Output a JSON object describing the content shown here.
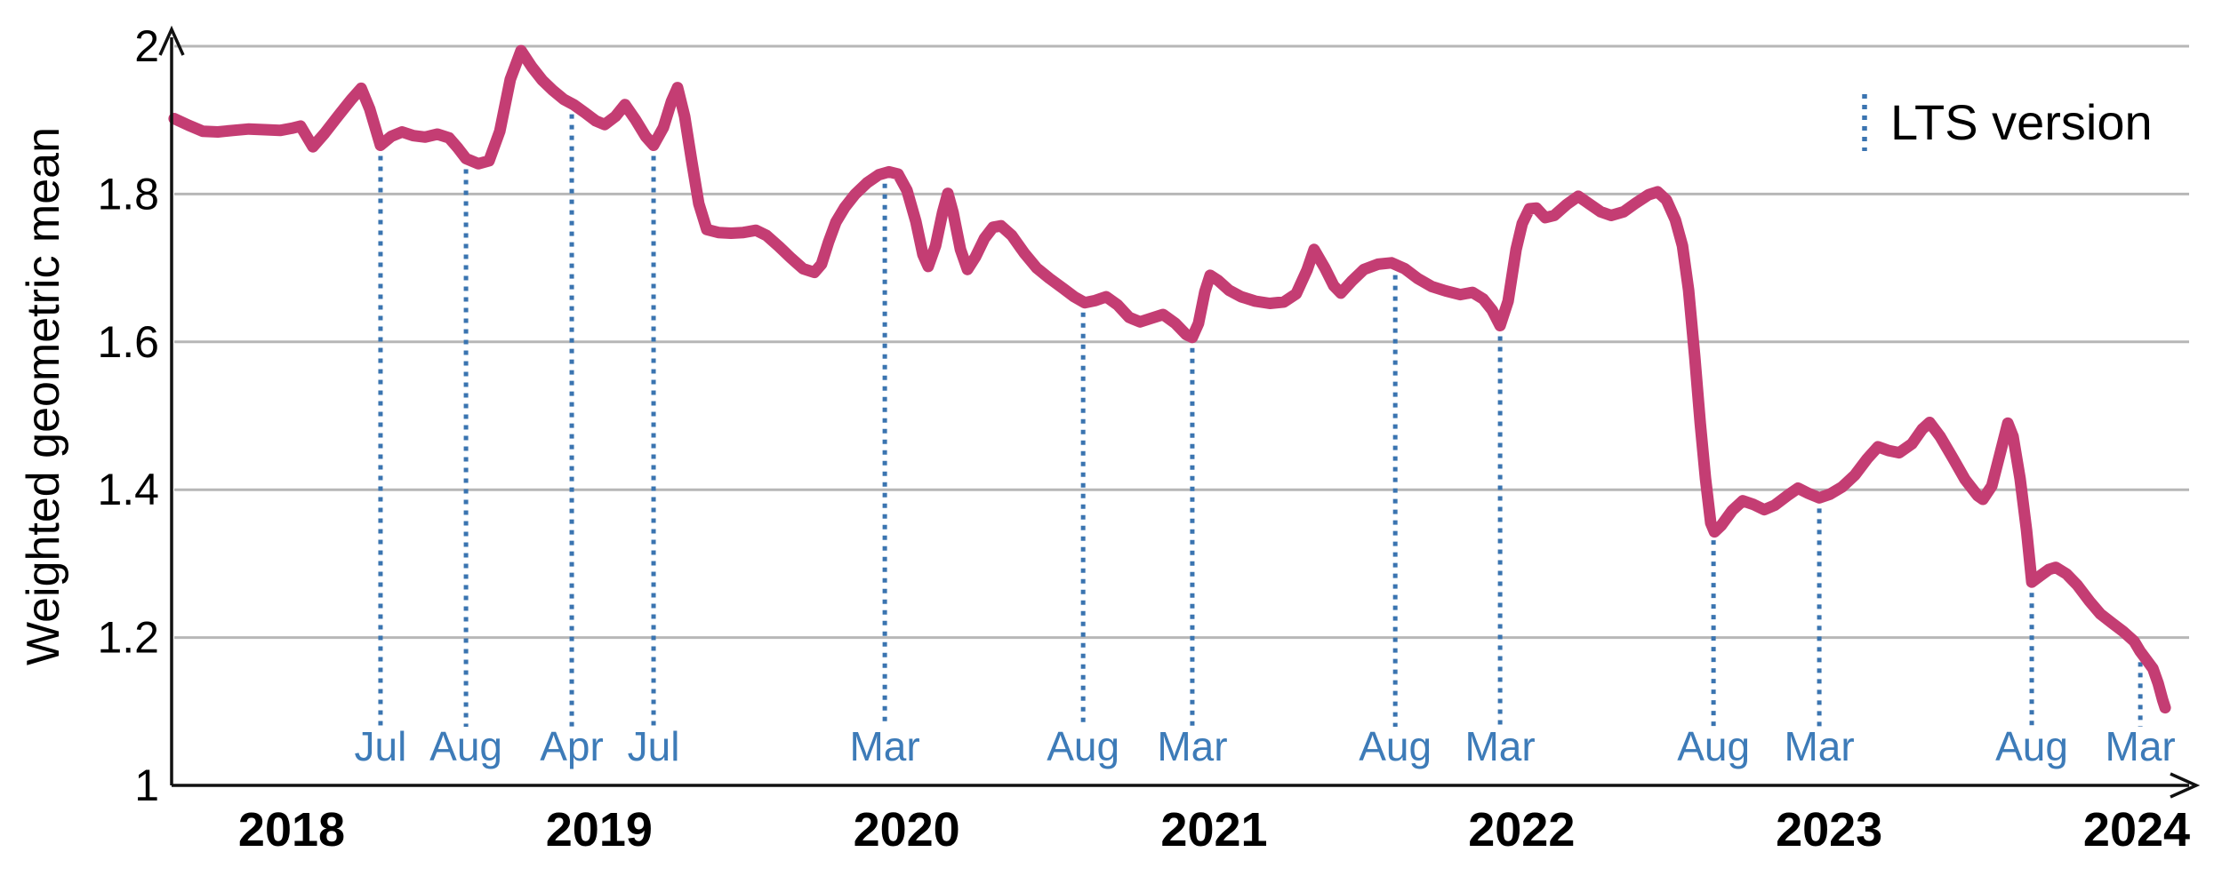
{
  "figure_title": "",
  "legend": {
    "lts_label": "LTS version"
  },
  "chart_data": {
    "type": "line",
    "title": "",
    "xlabel": "",
    "ylabel": "Weighted geometric mean",
    "xlim": [
      2017.61,
      2024.19
    ],
    "ylim": [
      1,
      2
    ],
    "grid": "horizontal",
    "legend_position": "top-right",
    "yticks": [
      {
        "value": 1,
        "label": "1"
      },
      {
        "value": 1.2,
        "label": "1.2"
      },
      {
        "value": 1.4,
        "label": "1.4"
      },
      {
        "value": 1.6,
        "label": "1.6"
      },
      {
        "value": 1.8,
        "label": "1.8"
      },
      {
        "value": 2,
        "label": "2"
      }
    ],
    "xticks": [
      {
        "t": 2018,
        "label": "2018"
      },
      {
        "t": 2019,
        "label": "2019"
      },
      {
        "t": 2020,
        "label": "2020"
      },
      {
        "t": 2021,
        "label": "2021"
      },
      {
        "t": 2022,
        "label": "2022"
      },
      {
        "t": 2023,
        "label": "2023"
      },
      {
        "t": 2024,
        "label": "2024"
      }
    ],
    "lts_markers": [
      {
        "t": 2018.289,
        "label": "Jul"
      },
      {
        "t": 2018.567,
        "label": "Aug"
      },
      {
        "t": 2018.911,
        "label": "Apr"
      },
      {
        "t": 2019.177,
        "label": "Jul"
      },
      {
        "t": 2019.929,
        "label": "Mar"
      },
      {
        "t": 2020.574,
        "label": "Aug"
      },
      {
        "t": 2020.929,
        "label": "Mar"
      },
      {
        "t": 2021.589,
        "label": "Aug"
      },
      {
        "t": 2021.93,
        "label": "Mar"
      },
      {
        "t": 2022.624,
        "label": "Aug"
      },
      {
        "t": 2022.968,
        "label": "Mar"
      },
      {
        "t": 2023.659,
        "label": "Aug"
      },
      {
        "t": 2024.012,
        "label": "Mar"
      }
    ],
    "colors": {
      "series": "#c43d73",
      "marker_line": "#3a74b0",
      "month_label": "#3d7bb8",
      "grid": "#b7b7b7",
      "axis": "#111111",
      "text": "#000000"
    },
    "series": [
      {
        "name": "Weighted geometric mean",
        "points": [
          [
            2017.618,
            1.902
          ],
          [
            2017.665,
            1.893
          ],
          [
            2017.711,
            1.885
          ],
          [
            2017.76,
            1.884
          ],
          [
            2017.809,
            1.886
          ],
          [
            2017.861,
            1.888
          ],
          [
            2017.913,
            1.887
          ],
          [
            2017.962,
            1.886
          ],
          [
            2018.0,
            1.889
          ],
          [
            2018.029,
            1.892
          ],
          [
            2018.069,
            1.864
          ],
          [
            2018.107,
            1.882
          ],
          [
            2018.15,
            1.905
          ],
          [
            2018.194,
            1.928
          ],
          [
            2018.226,
            1.943
          ],
          [
            2018.254,
            1.915
          ],
          [
            2018.289,
            1.866
          ],
          [
            2018.324,
            1.878
          ],
          [
            2018.359,
            1.884
          ],
          [
            2018.396,
            1.879
          ],
          [
            2018.434,
            1.877
          ],
          [
            2018.474,
            1.881
          ],
          [
            2018.512,
            1.876
          ],
          [
            2018.541,
            1.862
          ],
          [
            2018.567,
            1.848
          ],
          [
            2018.607,
            1.841
          ],
          [
            2018.642,
            1.845
          ],
          [
            2018.677,
            1.885
          ],
          [
            2018.711,
            1.955
          ],
          [
            2018.746,
            1.994
          ],
          [
            2018.781,
            1.972
          ],
          [
            2018.815,
            1.954
          ],
          [
            2018.85,
            1.94
          ],
          [
            2018.885,
            1.928
          ],
          [
            2018.917,
            1.921
          ],
          [
            2018.954,
            1.91
          ],
          [
            2018.989,
            1.899
          ],
          [
            2019.018,
            1.894
          ],
          [
            2019.053,
            1.905
          ],
          [
            2019.084,
            1.921
          ],
          [
            2019.119,
            1.9
          ],
          [
            2019.151,
            1.878
          ],
          [
            2019.177,
            1.866
          ],
          [
            2019.209,
            1.89
          ],
          [
            2019.235,
            1.925
          ],
          [
            2019.255,
            1.944
          ],
          [
            2019.278,
            1.905
          ],
          [
            2019.301,
            1.845
          ],
          [
            2019.324,
            1.787
          ],
          [
            2019.35,
            1.752
          ],
          [
            2019.388,
            1.748
          ],
          [
            2019.429,
            1.747
          ],
          [
            2019.469,
            1.748
          ],
          [
            2019.51,
            1.751
          ],
          [
            2019.544,
            1.744
          ],
          [
            2019.585,
            1.729
          ],
          [
            2019.625,
            1.713
          ],
          [
            2019.663,
            1.699
          ],
          [
            2019.7,
            1.694
          ],
          [
            2019.723,
            1.705
          ],
          [
            2019.746,
            1.735
          ],
          [
            2019.77,
            1.762
          ],
          [
            2019.799,
            1.782
          ],
          [
            2019.833,
            1.8
          ],
          [
            2019.871,
            1.815
          ],
          [
            2019.909,
            1.826
          ],
          [
            2019.943,
            1.83
          ],
          [
            2019.972,
            1.827
          ],
          [
            2020.001,
            1.805
          ],
          [
            2020.03,
            1.763
          ],
          [
            2020.053,
            1.718
          ],
          [
            2020.07,
            1.702
          ],
          [
            2020.094,
            1.73
          ],
          [
            2020.117,
            1.775
          ],
          [
            2020.134,
            1.801
          ],
          [
            2020.151,
            1.775
          ],
          [
            2020.175,
            1.725
          ],
          [
            2020.198,
            1.698
          ],
          [
            2020.224,
            1.715
          ],
          [
            2020.253,
            1.74
          ],
          [
            2020.281,
            1.755
          ],
          [
            2020.307,
            1.757
          ],
          [
            2020.342,
            1.744
          ],
          [
            2020.383,
            1.72
          ],
          [
            2020.423,
            1.7
          ],
          [
            2020.464,
            1.686
          ],
          [
            2020.51,
            1.672
          ],
          [
            2020.545,
            1.661
          ],
          [
            2020.579,
            1.653
          ],
          [
            2020.614,
            1.656
          ],
          [
            2020.649,
            1.661
          ],
          [
            2020.686,
            1.65
          ],
          [
            2020.724,
            1.633
          ],
          [
            2020.759,
            1.627
          ],
          [
            2020.796,
            1.632
          ],
          [
            2020.834,
            1.637
          ],
          [
            2020.874,
            1.625
          ],
          [
            2020.909,
            1.61
          ],
          [
            2020.929,
            1.606
          ],
          [
            2020.949,
            1.625
          ],
          [
            2020.97,
            1.668
          ],
          [
            2020.987,
            1.69
          ],
          [
            2021.013,
            1.683
          ],
          [
            2021.048,
            1.67
          ],
          [
            2021.088,
            1.661
          ],
          [
            2021.134,
            1.655
          ],
          [
            2021.181,
            1.652
          ],
          [
            2021.227,
            1.654
          ],
          [
            2021.267,
            1.665
          ],
          [
            2021.302,
            1.697
          ],
          [
            2021.325,
            1.725
          ],
          [
            2021.36,
            1.7
          ],
          [
            2021.389,
            1.676
          ],
          [
            2021.412,
            1.666
          ],
          [
            2021.447,
            1.682
          ],
          [
            2021.487,
            1.698
          ],
          [
            2021.533,
            1.705
          ],
          [
            2021.577,
            1.707
          ],
          [
            2021.62,
            1.699
          ],
          [
            2021.661,
            1.686
          ],
          [
            2021.707,
            1.675
          ],
          [
            2021.753,
            1.669
          ],
          [
            2021.8,
            1.664
          ],
          [
            2021.84,
            1.667
          ],
          [
            2021.875,
            1.658
          ],
          [
            2021.904,
            1.643
          ],
          [
            2021.93,
            1.622
          ],
          [
            2021.956,
            1.655
          ],
          [
            2021.982,
            1.725
          ],
          [
            2022.002,
            1.76
          ],
          [
            2022.025,
            1.78
          ],
          [
            2022.048,
            1.781
          ],
          [
            2022.077,
            1.768
          ],
          [
            2022.106,
            1.771
          ],
          [
            2022.147,
            1.786
          ],
          [
            2022.184,
            1.797
          ],
          [
            2022.222,
            1.786
          ],
          [
            2022.257,
            1.776
          ],
          [
            2022.291,
            1.771
          ],
          [
            2022.332,
            1.776
          ],
          [
            2022.372,
            1.788
          ],
          [
            2022.413,
            1.799
          ],
          [
            2022.442,
            1.803
          ],
          [
            2022.471,
            1.792
          ],
          [
            2022.5,
            1.765
          ],
          [
            2022.523,
            1.73
          ],
          [
            2022.543,
            1.67
          ],
          [
            2022.563,
            1.58
          ],
          [
            2022.581,
            1.49
          ],
          [
            2022.598,
            1.415
          ],
          [
            2022.615,
            1.355
          ],
          [
            2022.627,
            1.343
          ],
          [
            2022.65,
            1.352
          ],
          [
            2022.685,
            1.372
          ],
          [
            2022.719,
            1.385
          ],
          [
            2022.754,
            1.38
          ],
          [
            2022.789,
            1.373
          ],
          [
            2022.823,
            1.379
          ],
          [
            2022.864,
            1.392
          ],
          [
            2022.899,
            1.402
          ],
          [
            2022.933,
            1.395
          ],
          [
            2022.968,
            1.389
          ],
          [
            2023.003,
            1.394
          ],
          [
            2023.043,
            1.404
          ],
          [
            2023.084,
            1.42
          ],
          [
            2023.124,
            1.442
          ],
          [
            2023.159,
            1.458
          ],
          [
            2023.193,
            1.453
          ],
          [
            2023.228,
            1.45
          ],
          [
            2023.269,
            1.462
          ],
          [
            2023.303,
            1.482
          ],
          [
            2023.327,
            1.491
          ],
          [
            2023.361,
            1.472
          ],
          [
            2023.402,
            1.443
          ],
          [
            2023.442,
            1.414
          ],
          [
            2023.483,
            1.392
          ],
          [
            2023.5,
            1.387
          ],
          [
            2023.529,
            1.405
          ],
          [
            2023.558,
            1.452
          ],
          [
            2023.581,
            1.49
          ],
          [
            2023.598,
            1.472
          ],
          [
            2023.621,
            1.415
          ],
          [
            2023.642,
            1.345
          ],
          [
            2023.659,
            1.275
          ],
          [
            2023.685,
            1.283
          ],
          [
            2023.714,
            1.292
          ],
          [
            2023.737,
            1.295
          ],
          [
            2023.772,
            1.286
          ],
          [
            2023.807,
            1.271
          ],
          [
            2023.847,
            1.249
          ],
          [
            2023.882,
            1.232
          ],
          [
            2023.919,
            1.22
          ],
          [
            2023.957,
            1.208
          ],
          [
            2023.992,
            1.195
          ],
          [
            2024.012,
            1.181
          ],
          [
            2024.032,
            1.17
          ],
          [
            2024.053,
            1.158
          ],
          [
            2024.07,
            1.138
          ],
          [
            2024.085,
            1.115
          ],
          [
            2024.093,
            1.105
          ]
        ]
      }
    ]
  }
}
